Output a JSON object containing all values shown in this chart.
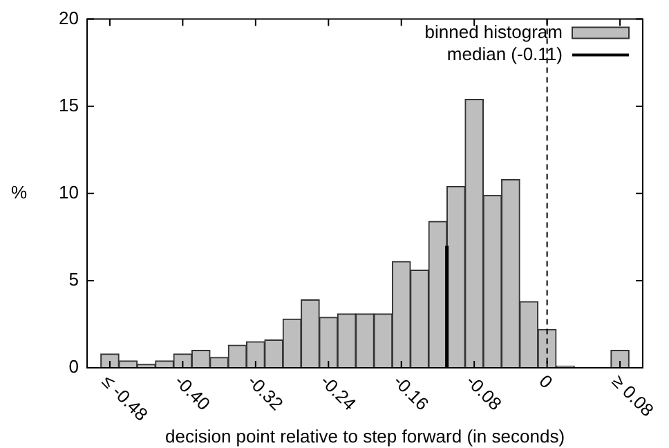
{
  "chart_data": {
    "type": "histogram",
    "xlabel": "decision point relative to step forward (in seconds)",
    "ylabel": "%",
    "bins": [
      -0.49,
      -0.47,
      -0.45,
      -0.43,
      -0.41,
      -0.39,
      -0.37,
      -0.35,
      -0.33,
      -0.31,
      -0.29,
      -0.27,
      -0.25,
      -0.23,
      -0.21,
      -0.19,
      -0.17,
      -0.15,
      -0.13,
      -0.11,
      -0.09,
      -0.07,
      -0.05,
      -0.03,
      -0.01,
      0.01,
      0.03,
      0.05,
      0.07,
      0.09
    ],
    "series": [
      {
        "name": "binned histogram",
        "color": "#bebebe",
        "values": [
          0.8,
          0.4,
          0.2,
          0.4,
          0.8,
          1.0,
          0.6,
          1.3,
          1.5,
          1.6,
          2.8,
          3.9,
          2.9,
          3.1,
          3.1,
          3.1,
          6.1,
          5.6,
          8.4,
          10.4,
          15.4,
          9.9,
          10.8,
          3.8,
          2.2,
          0.1,
          0,
          0,
          1.0
        ]
      },
      {
        "name": "median (-0.11)",
        "type": "line",
        "color": "#000000",
        "x": [
          -0.11,
          -0.11
        ],
        "values": [
          0,
          7
        ]
      }
    ],
    "xlim": [
      -0.505,
      0.105
    ],
    "xticks": [
      {
        "value": -0.48,
        "label": "≤ -0.48"
      },
      {
        "value": -0.4,
        "label": "-0.40"
      },
      -0.32,
      -0.24,
      -0.16,
      -0.08,
      0,
      {
        "value": 0.08,
        "label": "≥ 0.08"
      }
    ],
    "ylim": [
      0,
      20
    ],
    "yticks": [
      0,
      5,
      10,
      15,
      20
    ],
    "ref_lines": [
      {
        "axis": "x",
        "value": 0,
        "label": null,
        "line_style": "dashed",
        "color": "#000000"
      }
    ],
    "legend": "top right",
    "grid": false
  }
}
